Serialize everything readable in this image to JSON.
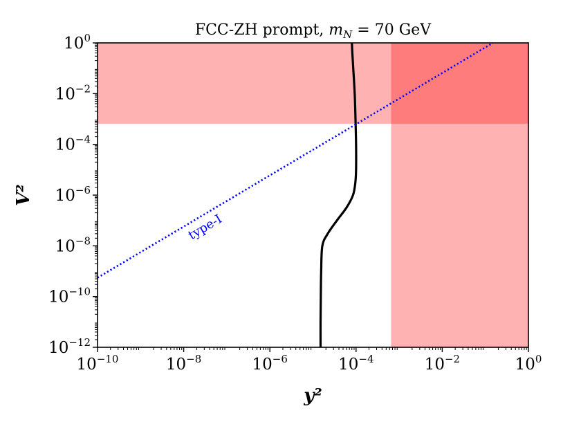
{
  "chart_data": {
    "type": "line",
    "title": "FCC-ZH prompt, m_N = 70 GeV",
    "title_parts": {
      "prefix": "FCC-ZH prompt, ",
      "var": "m",
      "sub": "N",
      "suffix": " = 70 GeV"
    },
    "xlabel": "y²",
    "ylabel": "V²",
    "x_scale": "log",
    "y_scale": "log",
    "xlim": [
      1e-10,
      1
    ],
    "ylim": [
      1e-12,
      1
    ],
    "x_ticks": [
      {
        "value": 1e-10,
        "base": "10",
        "exp": "−10"
      },
      {
        "value": 1e-08,
        "base": "10",
        "exp": "−8"
      },
      {
        "value": 1e-06,
        "base": "10",
        "exp": "−6"
      },
      {
        "value": 0.0001,
        "base": "10",
        "exp": "−4"
      },
      {
        "value": 0.01,
        "base": "10",
        "exp": "−2"
      },
      {
        "value": 1,
        "base": "10",
        "exp": "0"
      }
    ],
    "y_ticks": [
      {
        "value": 1e-12,
        "base": "10",
        "exp": "−12"
      },
      {
        "value": 1e-10,
        "base": "10",
        "exp": "−10"
      },
      {
        "value": 1e-08,
        "base": "10",
        "exp": "−8"
      },
      {
        "value": 1e-06,
        "base": "10",
        "exp": "−6"
      },
      {
        "value": 0.0001,
        "base": "10",
        "exp": "−4"
      },
      {
        "value": 0.01,
        "base": "10",
        "exp": "−2"
      },
      {
        "value": 1,
        "base": "10",
        "exp": "0"
      }
    ],
    "shaded_regions": [
      {
        "name": "excluded-v2-band",
        "x": [
          1e-10,
          1
        ],
        "y": [
          0.00065,
          1
        ],
        "color": "#ff0000",
        "opacity": 0.3
      },
      {
        "name": "excluded-y2-band",
        "x": [
          0.00065,
          1
        ],
        "y": [
          1e-12,
          1
        ],
        "color": "#ff0000",
        "opacity": 0.3
      }
    ],
    "series": [
      {
        "name": "sensitivity-contour",
        "color": "#000000",
        "style": "solid",
        "points": [
          [
            1.5e-05,
            1e-12
          ],
          [
            1.5e-05,
            1e-11
          ],
          [
            1.52e-05,
            1e-10
          ],
          [
            1.55e-05,
            1e-09
          ],
          [
            1.65e-05,
            1e-08
          ],
          [
            2.2e-05,
            3e-08
          ],
          [
            3.6e-05,
            1e-07
          ],
          [
            6e-05,
            3.2e-07
          ],
          [
            8.5e-05,
            1e-06
          ],
          [
            9.6e-05,
            3e-06
          ],
          [
            0.0001,
            1e-05
          ],
          [
            0.0001,
            0.0001
          ],
          [
            9.7e-05,
            0.001
          ],
          [
            9.3e-05,
            0.01
          ],
          [
            8.6e-05,
            0.1
          ],
          [
            8.2e-05,
            0.4
          ],
          [
            8e-05,
            1
          ]
        ]
      },
      {
        "name": "type-I",
        "color": "#0000ff",
        "style": "dotted",
        "label": "type-I",
        "label_at": {
          "x": 3.5e-08,
          "y": 4e-08
        },
        "points": [
          [
            1e-10,
            5.5e-10
          ],
          [
            0.15,
            1
          ]
        ]
      }
    ]
  }
}
